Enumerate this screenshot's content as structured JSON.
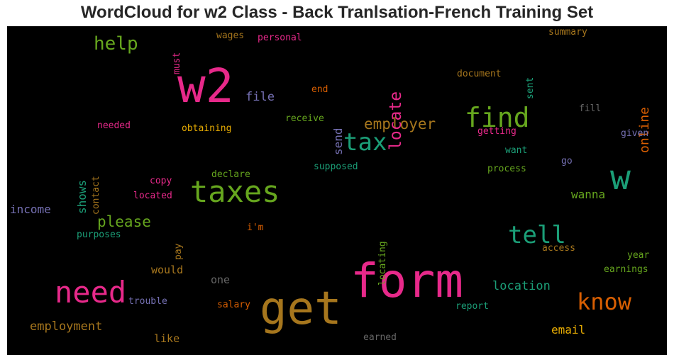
{
  "title": "WordCloud for w2 Class - Back Tranlsation-French Training Set",
  "chart_data": {
    "type": "wordcloud",
    "background": "#000000",
    "words": [
      {
        "text": "w2",
        "color": "#e7298a"
      },
      {
        "text": "form",
        "color": "#e7298a"
      },
      {
        "text": "get",
        "color": "#a6761d"
      },
      {
        "text": "w",
        "color": "#1b9e77"
      },
      {
        "text": "taxes",
        "color": "#66a61e"
      },
      {
        "text": "need",
        "color": "#e7298a"
      },
      {
        "text": "find",
        "color": "#66a61e"
      },
      {
        "text": "tell",
        "color": "#1b9e77"
      },
      {
        "text": "tax",
        "color": "#1b9e77"
      },
      {
        "text": "know",
        "color": "#d95f02"
      },
      {
        "text": "help",
        "color": "#66a61e"
      },
      {
        "text": "employer",
        "color": "#a6761d"
      },
      {
        "text": "locate",
        "color": "#e7298a"
      },
      {
        "text": "please",
        "color": "#66a61e"
      },
      {
        "text": "location",
        "color": "#1b9e77"
      },
      {
        "text": "online",
        "color": "#d95f02"
      },
      {
        "text": "file",
        "color": "#7570b3"
      },
      {
        "text": "send",
        "color": "#7570b3"
      },
      {
        "text": "employment",
        "color": "#a6761d"
      },
      {
        "text": "income",
        "color": "#7570b3"
      },
      {
        "text": "wanna",
        "color": "#66a61e"
      },
      {
        "text": "email",
        "color": "#e6ab02"
      },
      {
        "text": "shows",
        "color": "#1b9e77"
      },
      {
        "text": "would",
        "color": "#a6761d"
      },
      {
        "text": "one",
        "color": "#666666"
      },
      {
        "text": "like",
        "color": "#a6761d"
      },
      {
        "text": "document",
        "color": "#a6761d"
      },
      {
        "text": "obtaining",
        "color": "#e6ab02"
      },
      {
        "text": "receive",
        "color": "#66a61e"
      },
      {
        "text": "getting",
        "color": "#e7298a"
      },
      {
        "text": "process",
        "color": "#66a61e"
      },
      {
        "text": "supposed",
        "color": "#1b9e77"
      },
      {
        "text": "declare",
        "color": "#66a61e"
      },
      {
        "text": "needed",
        "color": "#e7298a"
      },
      {
        "text": "contact",
        "color": "#a6761d"
      },
      {
        "text": "copy",
        "color": "#e7298a"
      },
      {
        "text": "located",
        "color": "#e7298a"
      },
      {
        "text": "purposes",
        "color": "#1b9e77"
      },
      {
        "text": "pay",
        "color": "#a6761d"
      },
      {
        "text": "i'm",
        "color": "#d95f02"
      },
      {
        "text": "locating",
        "color": "#66a61e"
      },
      {
        "text": "summary",
        "color": "#a6761d"
      },
      {
        "text": "wages",
        "color": "#a6761d"
      },
      {
        "text": "personal",
        "color": "#e7298a"
      },
      {
        "text": "must",
        "color": "#e7298a"
      },
      {
        "text": "sent",
        "color": "#1b9e77"
      },
      {
        "text": "end",
        "color": "#d95f02"
      },
      {
        "text": "fill",
        "color": "#666666"
      },
      {
        "text": "given",
        "color": "#7570b3"
      },
      {
        "text": "want",
        "color": "#1b9e77"
      },
      {
        "text": "go",
        "color": "#7570b3"
      },
      {
        "text": "access",
        "color": "#a6761d"
      },
      {
        "text": "year",
        "color": "#66a61e"
      },
      {
        "text": "earnings",
        "color": "#66a61e"
      },
      {
        "text": "trouble",
        "color": "#7570b3"
      },
      {
        "text": "salary",
        "color": "#d95f02"
      },
      {
        "text": "report",
        "color": "#1b9e77"
      },
      {
        "text": "earned",
        "color": "#666666"
      }
    ]
  }
}
